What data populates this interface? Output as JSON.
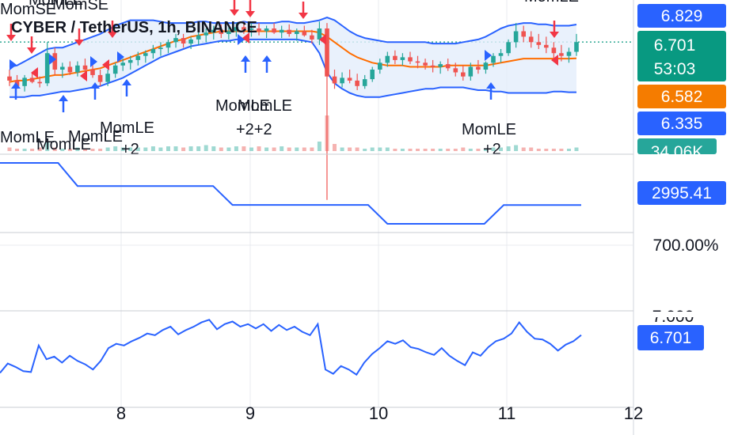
{
  "chart_data": {
    "type": "candlestick",
    "title": "CYBER / TetherUS, 1h, BINANCE",
    "colors": {
      "up": "#26a69a",
      "down": "#ef5350",
      "band": "#2962ff",
      "basis": "#ff6d00",
      "band_fill": "#e3eefb",
      "sell_arrow": "#f23645",
      "buy_arrow": "#2962ff",
      "last_price": "#089981",
      "basis_label": "#f57c00",
      "grid": "#e9ebef"
    },
    "x_ticks": [
      "8",
      "9",
      "10",
      "11",
      "12"
    ],
    "price_labels": [
      {
        "name": "upper-band",
        "value": "6.829"
      },
      {
        "name": "last-price",
        "value": "6.701"
      },
      {
        "name": "countdown",
        "value": "53:03"
      },
      {
        "name": "basis",
        "value": "6.582"
      },
      {
        "name": "lower-band",
        "value": "6.335"
      },
      {
        "name": "volume",
        "value": "34.06K"
      }
    ],
    "pane2": {
      "last_value": "2995.41",
      "values": [
        4000,
        4000,
        4000,
        4000,
        3450,
        3450,
        3450,
        3450,
        3450,
        3450,
        3450,
        3450,
        3000,
        3000,
        3000,
        3000,
        3000,
        3000,
        3000,
        3000,
        2550,
        2550,
        2550,
        2550,
        2550,
        2550,
        2995.41,
        2995.41,
        2995.41,
        2995.41,
        2995.41
      ]
    },
    "pane3": {
      "axis_label": "700.00%"
    },
    "pane4": {
      "axis_label": "7.000",
      "last_value": "6.701"
    },
    "signals": [
      {
        "text": "MomSE"
      },
      {
        "text": "MomSE"
      },
      {
        "text": "MomLE"
      },
      {
        "text": "MomLE"
      },
      {
        "text": "MomLE"
      },
      {
        "text": "MomLE"
      },
      {
        "text": "MomLE"
      },
      {
        "text": "+2"
      },
      {
        "text": "MomLE"
      },
      {
        "text": "MomLE"
      },
      {
        "text": "+2+2"
      },
      {
        "text": "MomLE"
      },
      {
        "text": "MomLE"
      },
      {
        "text": "+2"
      }
    ],
    "candles": [
      [
        6.45,
        6.5,
        6.38,
        6.42
      ],
      [
        6.42,
        6.46,
        6.36,
        6.38
      ],
      [
        6.38,
        6.46,
        6.34,
        6.44
      ],
      [
        6.44,
        6.48,
        6.4,
        6.41
      ],
      [
        6.41,
        6.45,
        6.37,
        6.4
      ],
      [
        6.4,
        6.7,
        6.38,
        6.62
      ],
      [
        6.62,
        6.66,
        6.46,
        6.5
      ],
      [
        6.5,
        6.55,
        6.44,
        6.52
      ],
      [
        6.52,
        6.56,
        6.46,
        6.48
      ],
      [
        6.48,
        6.56,
        6.45,
        6.53
      ],
      [
        6.53,
        6.58,
        6.47,
        6.5
      ],
      [
        6.5,
        6.55,
        6.44,
        6.46
      ],
      [
        6.46,
        6.5,
        6.38,
        6.41
      ],
      [
        6.41,
        6.5,
        6.38,
        6.47
      ],
      [
        6.47,
        6.55,
        6.44,
        6.53
      ],
      [
        6.53,
        6.58,
        6.49,
        6.55
      ],
      [
        6.55,
        6.6,
        6.5,
        6.57
      ],
      [
        6.57,
        6.63,
        6.53,
        6.6
      ],
      [
        6.6,
        6.64,
        6.55,
        6.62
      ],
      [
        6.62,
        6.68,
        6.58,
        6.65
      ],
      [
        6.65,
        6.7,
        6.6,
        6.66
      ],
      [
        6.66,
        6.72,
        6.62,
        6.7
      ],
      [
        6.7,
        6.76,
        6.66,
        6.73
      ],
      [
        6.73,
        6.76,
        6.66,
        6.69
      ],
      [
        6.69,
        6.74,
        6.65,
        6.72
      ],
      [
        6.72,
        6.78,
        6.68,
        6.75
      ],
      [
        6.75,
        6.8,
        6.7,
        6.77
      ],
      [
        6.77,
        6.82,
        6.72,
        6.79
      ],
      [
        6.79,
        6.83,
        6.73,
        6.76
      ],
      [
        6.76,
        6.81,
        6.72,
        6.78
      ],
      [
        6.78,
        6.84,
        6.74,
        6.81
      ],
      [
        6.81,
        6.85,
        6.76,
        6.79
      ],
      [
        6.79,
        6.84,
        6.74,
        6.8
      ],
      [
        6.8,
        6.84,
        6.75,
        6.78
      ],
      [
        6.78,
        6.82,
        6.73,
        6.8
      ],
      [
        6.8,
        6.84,
        6.76,
        6.77
      ],
      [
        6.77,
        6.82,
        6.73,
        6.79
      ],
      [
        6.79,
        6.83,
        6.74,
        6.76
      ],
      [
        6.76,
        6.8,
        6.71,
        6.78
      ],
      [
        6.78,
        6.82,
        6.74,
        6.75
      ],
      [
        6.75,
        6.79,
        6.69,
        6.72
      ],
      [
        6.72,
        6.85,
        6.68,
        6.8
      ],
      [
        6.8,
        6.84,
        5.55,
        6.45
      ],
      [
        6.45,
        6.5,
        6.36,
        6.4
      ],
      [
        6.4,
        6.48,
        6.37,
        6.44
      ],
      [
        6.44,
        6.5,
        6.4,
        6.42
      ],
      [
        6.42,
        6.47,
        6.35,
        6.38
      ],
      [
        6.38,
        6.46,
        6.36,
        6.43
      ],
      [
        6.43,
        6.52,
        6.41,
        6.5
      ],
      [
        6.5,
        6.58,
        6.47,
        6.55
      ],
      [
        6.55,
        6.63,
        6.52,
        6.6
      ],
      [
        6.6,
        6.64,
        6.54,
        6.57
      ],
      [
        6.57,
        6.62,
        6.53,
        6.59
      ],
      [
        6.59,
        6.63,
        6.54,
        6.56
      ],
      [
        6.56,
        6.6,
        6.51,
        6.55
      ],
      [
        6.55,
        6.58,
        6.5,
        6.53
      ],
      [
        6.53,
        6.57,
        6.48,
        6.52
      ],
      [
        6.52,
        6.56,
        6.47,
        6.54
      ],
      [
        6.54,
        6.58,
        6.49,
        6.51
      ],
      [
        6.51,
        6.55,
        6.45,
        6.48
      ],
      [
        6.48,
        6.53,
        6.42,
        6.45
      ],
      [
        6.45,
        6.55,
        6.42,
        6.52
      ],
      [
        6.52,
        6.57,
        6.47,
        6.5
      ],
      [
        6.5,
        6.56,
        6.47,
        6.55
      ],
      [
        6.55,
        6.62,
        6.52,
        6.6
      ],
      [
        6.6,
        6.65,
        6.55,
        6.62
      ],
      [
        6.62,
        6.72,
        6.6,
        6.7
      ],
      [
        6.7,
        6.84,
        6.66,
        6.78
      ],
      [
        6.78,
        6.82,
        6.7,
        6.74
      ],
      [
        6.74,
        6.78,
        6.66,
        6.7
      ],
      [
        6.7,
        6.76,
        6.65,
        6.68
      ],
      [
        6.68,
        6.74,
        6.62,
        6.66
      ],
      [
        6.66,
        6.7,
        6.58,
        6.62
      ],
      [
        6.62,
        6.68,
        6.56,
        6.6
      ],
      [
        6.6,
        6.66,
        6.55,
        6.63
      ],
      [
        6.63,
        6.76,
        6.6,
        6.701
      ]
    ],
    "upper_band": [
      6.52,
      6.53,
      6.56,
      6.59,
      6.62,
      6.65,
      6.66,
      6.66,
      6.68,
      6.7,
      6.72,
      6.74,
      6.76,
      6.79,
      6.82,
      6.84,
      6.86,
      6.86,
      6.86,
      6.86,
      6.85,
      6.84,
      6.84,
      6.84,
      6.84,
      6.85,
      6.85,
      6.84,
      6.84,
      6.84,
      6.84,
      6.85,
      6.84,
      6.84,
      6.84,
      6.84,
      6.85,
      6.85,
      6.84,
      6.84,
      6.85,
      6.86,
      6.88,
      6.86,
      6.82,
      6.78,
      6.75,
      6.73,
      6.72,
      6.71,
      6.7,
      6.7,
      6.7,
      6.7,
      6.7,
      6.7,
      6.69,
      6.69,
      6.69,
      6.69,
      6.7,
      6.71,
      6.72,
      6.74,
      6.77,
      6.8,
      6.82,
      6.83,
      6.84,
      6.84,
      6.83,
      6.83,
      6.82,
      6.82,
      6.82,
      6.829
    ],
    "lower_band": [
      6.3,
      6.3,
      6.3,
      6.31,
      6.31,
      6.32,
      6.33,
      6.34,
      6.34,
      6.35,
      6.36,
      6.37,
      6.38,
      6.4,
      6.42,
      6.44,
      6.47,
      6.5,
      6.53,
      6.56,
      6.59,
      6.61,
      6.63,
      6.65,
      6.67,
      6.68,
      6.69,
      6.7,
      6.71,
      6.71,
      6.72,
      6.72,
      6.72,
      6.72,
      6.72,
      6.72,
      6.72,
      6.72,
      6.72,
      6.71,
      6.7,
      6.62,
      6.48,
      6.4,
      6.36,
      6.33,
      6.31,
      6.3,
      6.3,
      6.3,
      6.31,
      6.32,
      6.33,
      6.34,
      6.35,
      6.36,
      6.36,
      6.37,
      6.37,
      6.37,
      6.37,
      6.36,
      6.35,
      6.35,
      6.34,
      6.34,
      6.33,
      6.33,
      6.33,
      6.33,
      6.33,
      6.33,
      6.34,
      6.34,
      6.335,
      6.335
    ],
    "basis": [
      6.41,
      6.42,
      6.42,
      6.43,
      6.44,
      6.45,
      6.46,
      6.46,
      6.47,
      6.48,
      6.49,
      6.5,
      6.51,
      6.53,
      6.55,
      6.57,
      6.59,
      6.61,
      6.63,
      6.65,
      6.67,
      6.69,
      6.71,
      6.72,
      6.74,
      6.75,
      6.76,
      6.77,
      6.78,
      6.78,
      6.78,
      6.78,
      6.78,
      6.78,
      6.78,
      6.78,
      6.78,
      6.78,
      6.78,
      6.78,
      6.78,
      6.77,
      6.74,
      6.7,
      6.66,
      6.62,
      6.59,
      6.57,
      6.55,
      6.54,
      6.53,
      6.53,
      6.53,
      6.52,
      6.52,
      6.52,
      6.52,
      6.52,
      6.53,
      6.53,
      6.53,
      6.53,
      6.53,
      6.53,
      6.54,
      6.55,
      6.56,
      6.57,
      6.58,
      6.58,
      6.58,
      6.58,
      6.58,
      6.58,
      6.58,
      6.582
    ],
    "volumes": [
      3,
      2,
      2,
      2,
      3,
      8,
      3,
      2,
      2,
      3,
      2,
      2,
      2,
      3,
      4,
      3,
      3,
      3,
      3,
      4,
      3,
      4,
      4,
      3,
      4,
      4,
      5,
      4,
      3,
      3,
      4,
      4,
      3,
      4,
      3,
      3,
      4,
      3,
      3,
      3,
      3,
      8,
      30,
      6,
      3,
      3,
      3,
      2,
      3,
      3,
      3,
      2,
      2,
      2,
      2,
      2,
      2,
      2,
      2,
      2,
      3,
      2,
      2,
      2,
      3,
      3,
      4,
      5,
      3,
      3,
      2,
      2,
      2,
      2,
      2,
      3
    ],
    "pane4_values": [
      6.26,
      6.37,
      6.33,
      6.28,
      6.27,
      6.58,
      6.42,
      6.45,
      6.38,
      6.46,
      6.4,
      6.36,
      6.3,
      6.4,
      6.55,
      6.6,
      6.58,
      6.63,
      6.67,
      6.72,
      6.7,
      6.76,
      6.8,
      6.71,
      6.76,
      6.8,
      6.85,
      6.88,
      6.77,
      6.83,
      6.86,
      6.8,
      6.83,
      6.78,
      6.83,
      6.75,
      6.82,
      6.76,
      6.8,
      6.74,
      6.7,
      6.83,
      6.3,
      6.25,
      6.34,
      6.3,
      6.24,
      6.38,
      6.48,
      6.55,
      6.63,
      6.6,
      6.64,
      6.56,
      6.54,
      6.5,
      6.47,
      6.55,
      6.46,
      6.4,
      6.35,
      6.5,
      6.46,
      6.56,
      6.63,
      6.66,
      6.72,
      6.85,
      6.74,
      6.66,
      6.65,
      6.6,
      6.52,
      6.59,
      6.63,
      6.701
    ]
  }
}
